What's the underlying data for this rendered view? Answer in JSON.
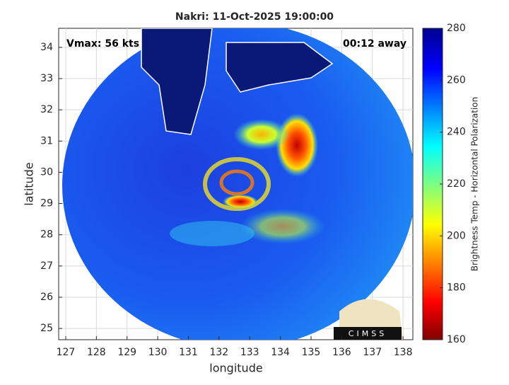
{
  "chart_data": {
    "type": "map",
    "title": "Nakri: 11-Oct-2025 19:00:00",
    "xlabel": "longitude",
    "ylabel": "latitude",
    "xlim": [
      126.77,
      138.32
    ],
    "ylim": [
      24.64,
      34.61
    ],
    "xticks": [
      127,
      128,
      129,
      130,
      131,
      132,
      133,
      134,
      135,
      136,
      137,
      138
    ],
    "yticks": [
      25,
      26,
      27,
      28,
      29,
      30,
      31,
      32,
      33,
      34
    ],
    "grid": true,
    "annotations": [
      "Vmax: 56 kts",
      "00:12 away"
    ],
    "logo_text": "CIMSS",
    "colorbar": {
      "label": "Brightness Temp - Horizontal Polarization",
      "lim": [
        160,
        280
      ],
      "ticks": [
        160,
        180,
        200,
        220,
        240,
        260,
        280
      ]
    }
  }
}
